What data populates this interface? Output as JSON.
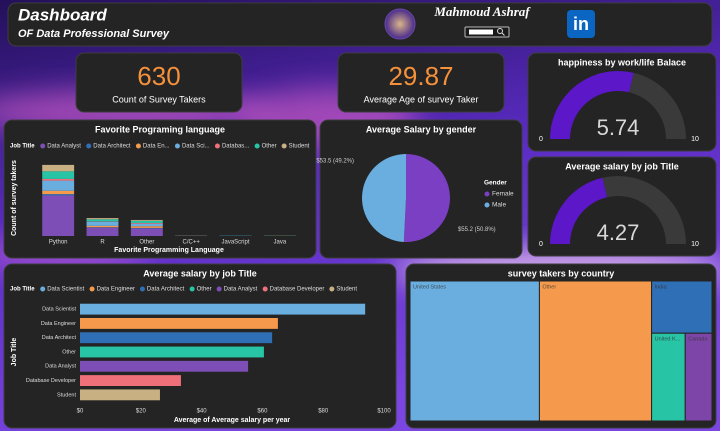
{
  "header": {
    "title": "Dashboard",
    "subtitle": "OF Data Professional Survey",
    "author": "Mahmoud Ashraf",
    "brand": "in"
  },
  "kpis": [
    {
      "value": 630,
      "label": "Count of Survey Takers"
    },
    {
      "value": 29.87,
      "label": "Average Age of survey Taker"
    }
  ],
  "chart_data": [
    {
      "type": "gauge",
      "title": "happiness by work/life Balace",
      "value": 5.74,
      "ylim": [
        0,
        10
      ],
      "yticks": [
        0,
        10
      ],
      "color": "#5b17c8",
      "track_color": "#3a3a3a"
    },
    {
      "type": "gauge",
      "title": "Average salary by job Title",
      "value": 4.27,
      "ylim": [
        0,
        10
      ],
      "yticks": [
        0,
        10
      ],
      "color": "#5b17c8",
      "track_color": "#3a3a3a"
    },
    {
      "type": "stacked_bar",
      "title": "Favorite Programing language",
      "legend_title": "Job Title",
      "categories": [
        "Python",
        "R",
        "Other",
        "C/C++",
        "JavaScript",
        "Java"
      ],
      "series": [
        {
          "name": "Data Analyst",
          "color": "#7d4fb6",
          "values": [
            240,
            50,
            45,
            0,
            1,
            0
          ]
        },
        {
          "name": "Data Architect",
          "color": "#2f6fb5",
          "values": [
            8,
            2,
            3,
            0,
            1,
            0
          ]
        },
        {
          "name": "Data En...",
          "color": "#f59a4c",
          "values": [
            20,
            8,
            10,
            1,
            0,
            1
          ]
        },
        {
          "name": "Data Sci...",
          "color": "#6aaee0",
          "values": [
            60,
            25,
            15,
            1,
            0,
            0
          ]
        },
        {
          "name": "Databas...",
          "color": "#f0707a",
          "values": [
            10,
            2,
            4,
            0,
            0,
            0
          ]
        },
        {
          "name": "Other",
          "color": "#27c4a5",
          "values": [
            45,
            12,
            13,
            0,
            1,
            1
          ]
        },
        {
          "name": "Student",
          "color": "#c9b083",
          "values": [
            38,
            7,
            5,
            0,
            0,
            0
          ]
        }
      ],
      "ylim": [
        0,
        450
      ],
      "xlabel": "Favorite Programming Language",
      "ylabel": "Count of survey takers"
    },
    {
      "type": "pie",
      "title": "Average Salary by gender",
      "legend_title": "Gender",
      "categories": [
        "Female",
        "Male"
      ],
      "values": [
        55.2,
        53.5
      ],
      "value_labels": [
        "$55.2 (50.8%)",
        "$53.5 (49.2%)"
      ],
      "colors": [
        "#7b3fc4",
        "#6aaee0"
      ]
    },
    {
      "type": "hbar",
      "title": "Average salary by job Title",
      "legend_title": "Job Title",
      "categories": [
        "Data Scientist",
        "Data Engineer",
        "Data Architect",
        "Other",
        "Data Analyst",
        "Database Developer",
        "Student"
      ],
      "values": [
        93.8,
        65.1,
        63.2,
        60.5,
        55.3,
        33.2,
        26.3
      ],
      "colors": [
        "#6aaee0",
        "#f59a4c",
        "#2f6fb5",
        "#27c4a5",
        "#7d4fb6",
        "#f0707a",
        "#c9b083"
      ],
      "xlim": [
        0,
        100
      ],
      "xticks": [
        {
          "value": 0,
          "label": "$0"
        },
        {
          "value": 20,
          "label": "$20"
        },
        {
          "value": 40,
          "label": "$40"
        },
        {
          "value": 60,
          "label": "$60"
        },
        {
          "value": 80,
          "label": "$80"
        },
        {
          "value": 100,
          "label": "$100"
        }
      ],
      "xlabel": "Average of Average  salary  per  year",
      "ylabel": "Job Title"
    },
    {
      "type": "treemap",
      "title": "survey takers by country",
      "categories": [
        "United States",
        "Other",
        "India",
        "United K...",
        "Canada"
      ],
      "values": [
        270,
        234,
        47,
        44,
        35
      ],
      "colors": [
        "#6aaee0",
        "#f59a4c",
        "#2f6fb5",
        "#27c4a5",
        "#7e45a8"
      ]
    }
  ]
}
